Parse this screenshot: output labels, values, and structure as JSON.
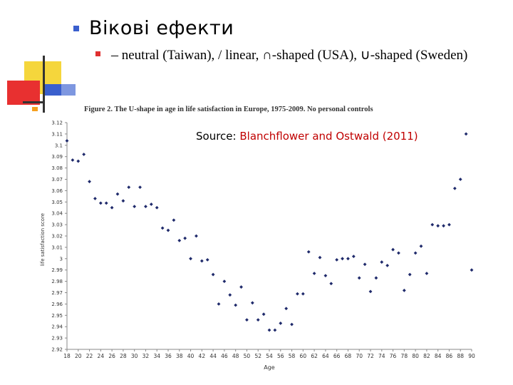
{
  "slide": {
    "title": "Вікові ефекти",
    "subtitle_prefix": "–",
    "subtitle": "neutral (Taiwan), / linear, ∩-shaped (USA),  ∪-shaped (Sweden)",
    "colors": {
      "bullet_main": "#3a5fcd",
      "bullet_sub": "#e03030",
      "deco_yellow": "#f5d63c",
      "deco_red": "#e83030",
      "deco_blue": "#3a5fcd",
      "deco_orange": "#f5a020",
      "source_link": "#c00000"
    }
  },
  "source": {
    "label": "Source:",
    "citation": "Blanchflower and Ostwald (2011)"
  },
  "chart_data": {
    "type": "scatter",
    "title": "Figure 2.  The U-shape in age in life satisfaction in Europe, 1975-2009.  No personal controls",
    "xlabel": "Age",
    "ylabel": "life satisfaction score",
    "xlim": [
      18,
      90
    ],
    "ylim": [
      2.92,
      3.12
    ],
    "xticks": [
      18,
      20,
      22,
      24,
      26,
      28,
      30,
      32,
      34,
      36,
      38,
      40,
      42,
      44,
      46,
      48,
      50,
      52,
      54,
      56,
      58,
      60,
      62,
      64,
      66,
      68,
      70,
      72,
      74,
      76,
      78,
      80,
      82,
      84,
      86,
      88,
      90
    ],
    "xtick_labels": [
      "18",
      "20",
      "22",
      "24",
      "26",
      "28",
      "30",
      "32",
      "34",
      "36",
      "38",
      "40",
      "42",
      "44",
      "46",
      "48",
      "50",
      "52",
      "54",
      "56",
      "58",
      "60",
      "62",
      "64",
      "66",
      "68",
      "70",
      "72",
      "74",
      "76",
      "78",
      "80",
      "82",
      "84",
      "86",
      "88",
      "90"
    ],
    "yticks": [
      2.92,
      2.93,
      2.94,
      2.95,
      2.96,
      2.97,
      2.98,
      2.99,
      3.0,
      3.01,
      3.02,
      3.03,
      3.04,
      3.05,
      3.06,
      3.07,
      3.08,
      3.09,
      3.1,
      3.11,
      3.12
    ],
    "ytick_labels": [
      "2.92",
      "2.93",
      "2.94",
      "2.95",
      "2.96",
      "2.97",
      "2.98",
      "2.99",
      "3",
      "3.01",
      "3.02",
      "3.03",
      "3.04",
      "3.05",
      "3.06",
      "3.07",
      "3.08",
      "3.09",
      "3.1",
      "3.11",
      "3.12"
    ],
    "grid": false,
    "marker_color": "#1f2a6b",
    "x": [
      18,
      19,
      20,
      21,
      22,
      23,
      24,
      25,
      26,
      27,
      28,
      29,
      30,
      31,
      32,
      33,
      34,
      35,
      36,
      37,
      38,
      39,
      40,
      41,
      42,
      43,
      44,
      45,
      46,
      47,
      48,
      49,
      50,
      51,
      52,
      53,
      54,
      55,
      56,
      57,
      58,
      59,
      60,
      61,
      62,
      63,
      64,
      65,
      66,
      67,
      68,
      69,
      70,
      71,
      72,
      73,
      74,
      75,
      76,
      77,
      78,
      79,
      80,
      81,
      82,
      83,
      84,
      85,
      86,
      87,
      88,
      89,
      90
    ],
    "y": [
      3.104,
      3.087,
      3.086,
      3.092,
      3.068,
      3.053,
      3.049,
      3.049,
      3.045,
      3.057,
      3.051,
      3.063,
      3.046,
      3.063,
      3.046,
      3.048,
      3.045,
      3.027,
      3.025,
      3.034,
      3.016,
      3.018,
      3.0,
      3.02,
      2.998,
      2.999,
      2.986,
      2.96,
      2.98,
      2.968,
      2.959,
      2.975,
      2.946,
      2.961,
      2.946,
      2.951,
      2.937,
      2.937,
      2.943,
      2.956,
      2.942,
      2.969,
      2.969,
      3.006,
      2.987,
      3.001,
      2.985,
      2.978,
      2.999,
      3.0,
      3.0,
      3.002,
      2.983,
      2.995,
      2.971,
      2.983,
      2.997,
      2.994,
      3.008,
      3.005,
      2.972,
      2.986,
      3.005,
      3.011,
      2.987,
      3.03,
      3.029,
      3.029,
      3.03,
      3.062,
      3.07,
      3.11,
      2.99
    ]
  }
}
